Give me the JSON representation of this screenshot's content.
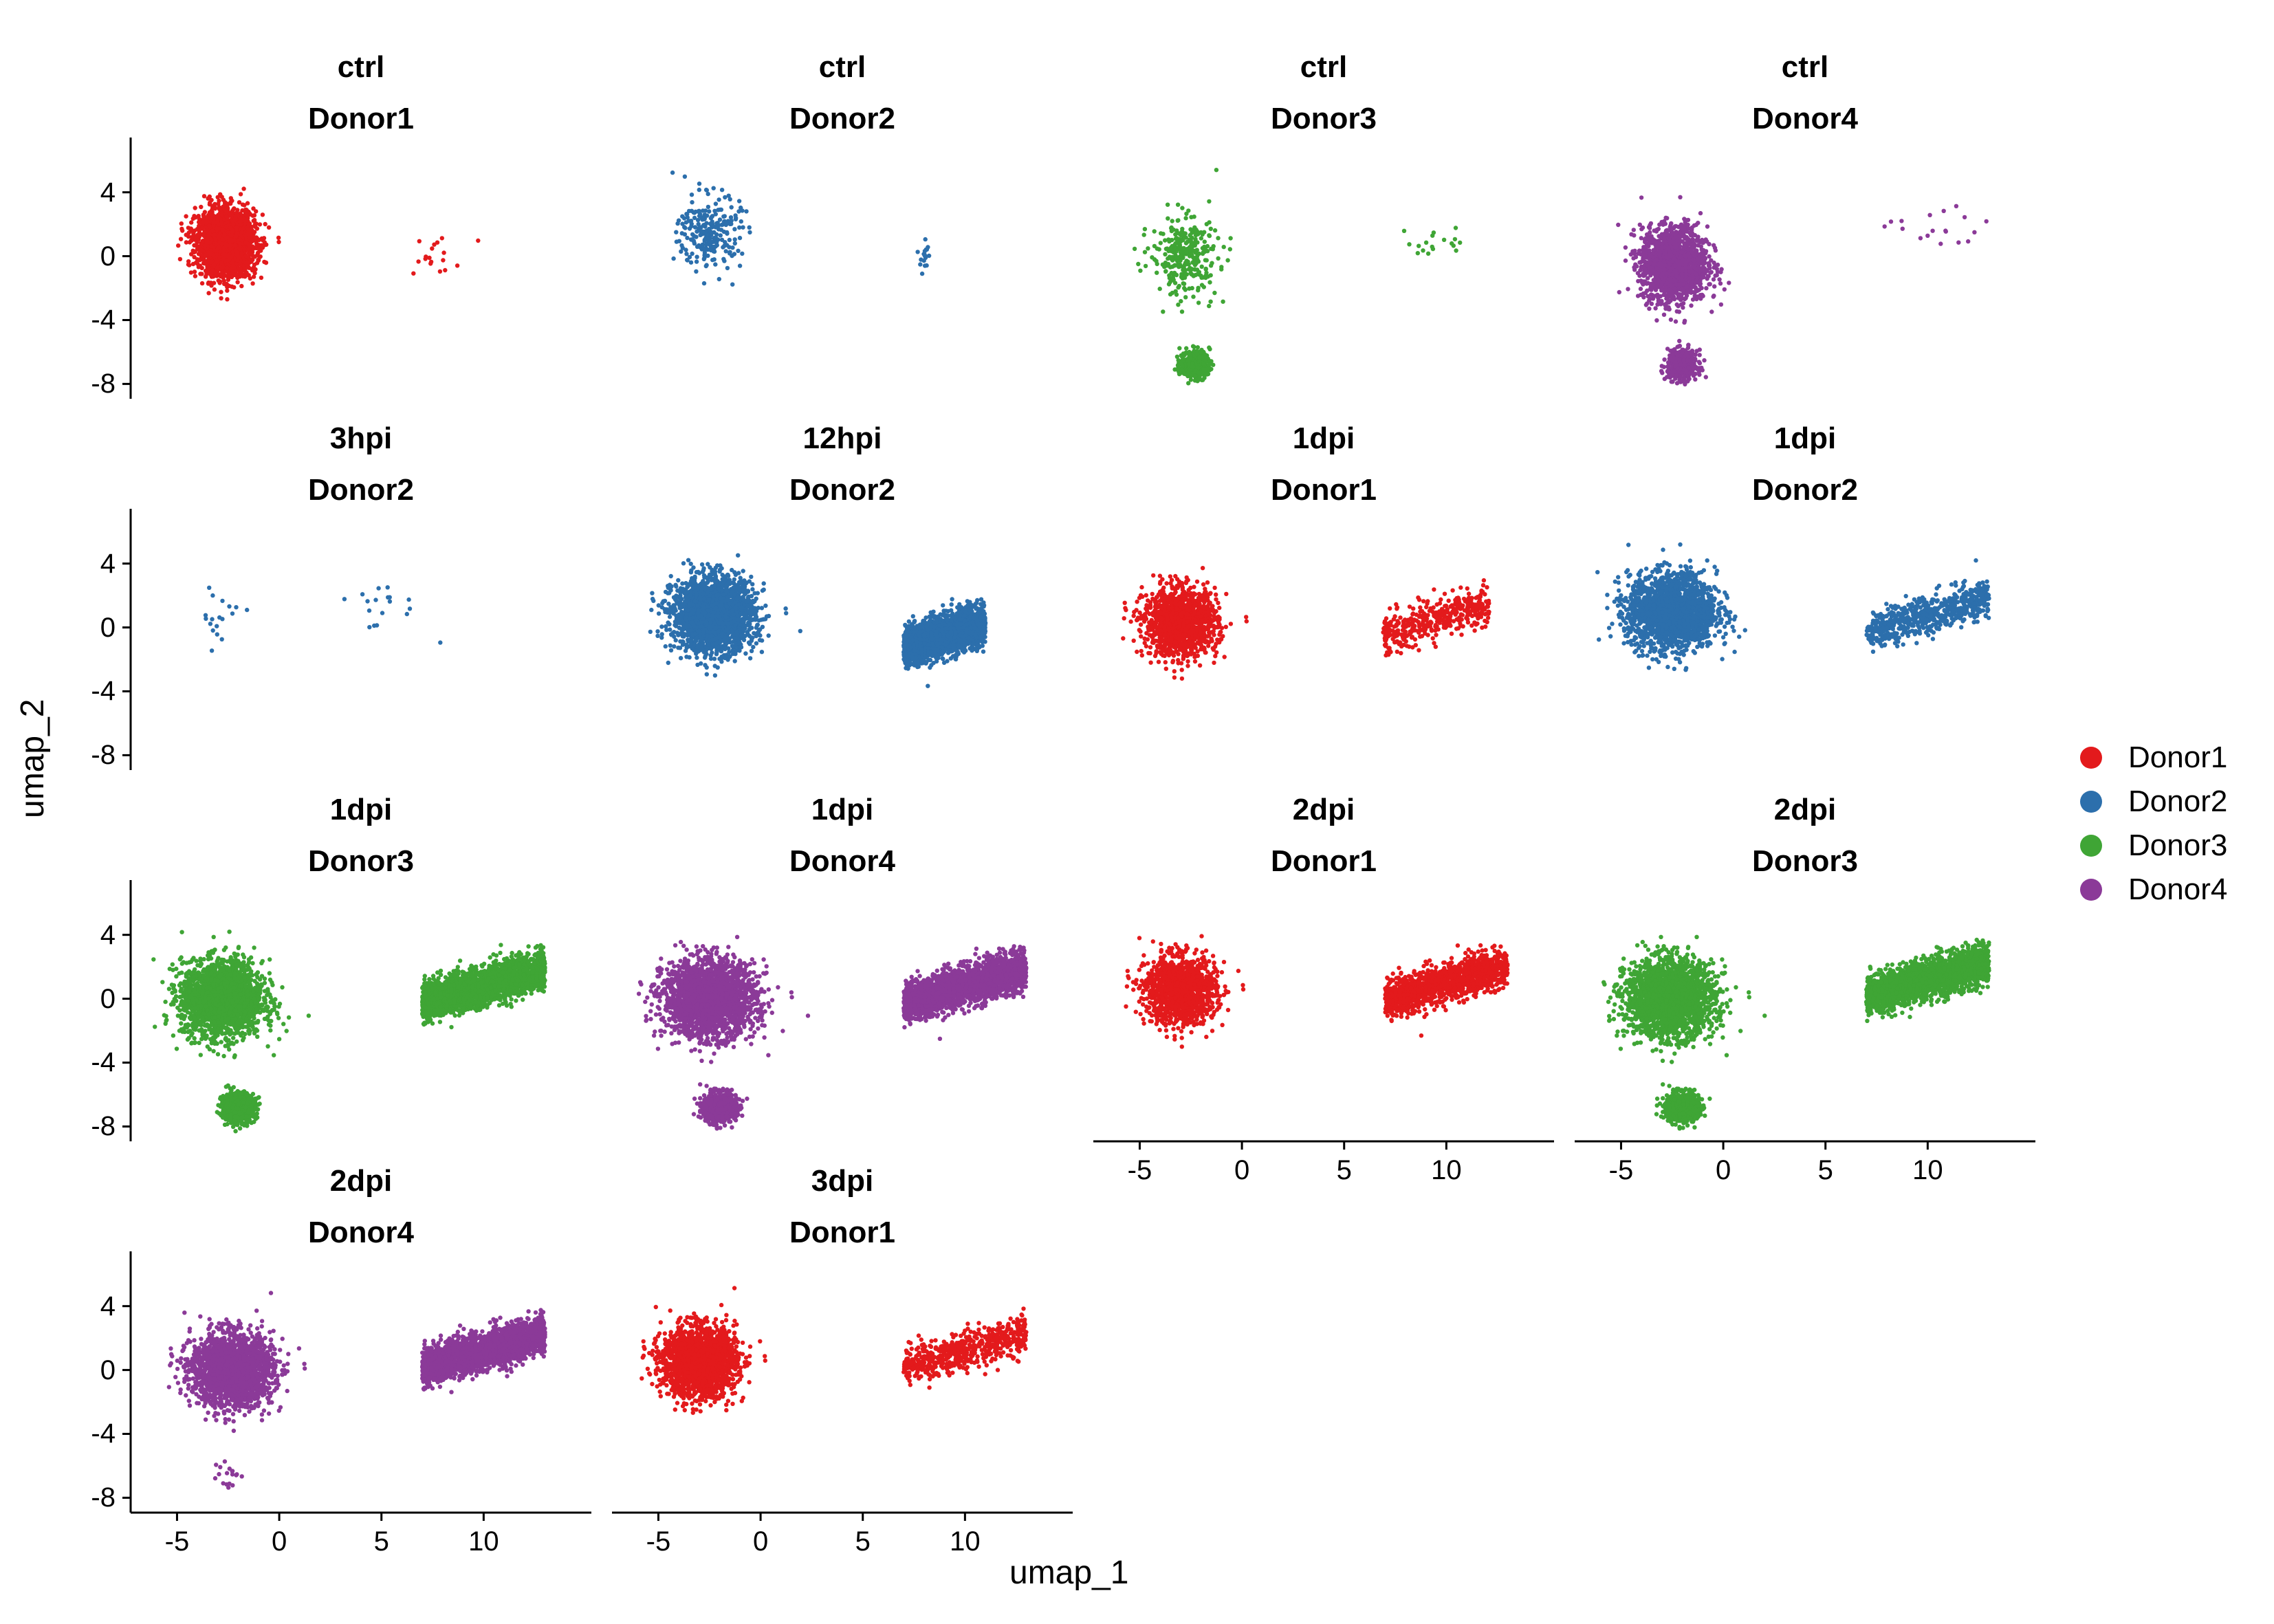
{
  "chart_data": {
    "type": "scatter",
    "facet_layout": "4 columns, facets by condition and donor",
    "xlabel": "umap_1",
    "ylabel": "umap_2",
    "xlim": [
      -7,
      15
    ],
    "ylim": [
      -8.5,
      7
    ],
    "x_ticks": [
      -5,
      0,
      5,
      10
    ],
    "x_tick_labels": [
      "-5",
      "0",
      "5",
      "10"
    ],
    "y_ticks": [
      4,
      0,
      -4,
      -8
    ],
    "y_tick_labels": [
      "4",
      "0",
      "-4",
      "-8"
    ],
    "grid": false,
    "legend": {
      "placement": "right",
      "entries": [
        {
          "name": "Donor1",
          "color": "#E31A1C"
        },
        {
          "name": "Donor2",
          "color": "#2C6FAC"
        },
        {
          "name": "Donor3",
          "color": "#3FA535"
        },
        {
          "name": "Donor4",
          "color": "#8B3A98"
        }
      ]
    },
    "panels": [
      {
        "condition": "ctrl",
        "donor": "Donor1",
        "color": "#E31A1C",
        "point_density": 0.9,
        "clusters": [
          {
            "label": "main",
            "center": [
              -2.6,
              0.8
            ],
            "spread": [
              1.6,
              2.3
            ],
            "density": "high"
          },
          {
            "label": "sparse-right",
            "center": [
              7.5,
              0.0
            ],
            "spread": [
              1.5,
              1.8
            ],
            "density": "sparse"
          }
        ]
      },
      {
        "condition": "ctrl",
        "donor": "Donor2",
        "color": "#2C6FAC",
        "point_density": 0.35,
        "clusters": [
          {
            "label": "main",
            "center": [
              -2.5,
              1.5
            ],
            "spread": [
              1.7,
              2.6
            ],
            "density": "medium"
          },
          {
            "label": "sparse-right",
            "center": [
              8.0,
              0.0
            ],
            "spread": [
              0.3,
              1.0
            ],
            "density": "sparse"
          }
        ]
      },
      {
        "condition": "ctrl",
        "donor": "Donor3",
        "color": "#3FA535",
        "point_density": 0.45,
        "clusters": [
          {
            "label": "main",
            "center": [
              -2.8,
              0.0
            ],
            "spread": [
              1.8,
              2.8
            ],
            "density": "medium"
          },
          {
            "label": "tail",
            "center": [
              -2.3,
              -6.8
            ],
            "spread": [
              0.8,
              1.0
            ],
            "density": "medium"
          },
          {
            "label": "sparse-right",
            "center": [
              9.5,
              1.0
            ],
            "spread": [
              1.5,
              1.5
            ],
            "density": "sparse"
          }
        ]
      },
      {
        "condition": "ctrl",
        "donor": "Donor4",
        "color": "#8B3A98",
        "point_density": 0.7,
        "clusters": [
          {
            "label": "main",
            "center": [
              -2.4,
              -0.5
            ],
            "spread": [
              1.8,
              2.6
            ],
            "density": "high"
          },
          {
            "label": "tail",
            "center": [
              -2.0,
              -6.8
            ],
            "spread": [
              0.8,
              1.0
            ],
            "density": "medium"
          },
          {
            "label": "sparse-right",
            "center": [
              10.5,
              1.5
            ],
            "spread": [
              2.5,
              1.8
            ],
            "density": "sparse"
          }
        ]
      },
      {
        "condition": "3hpi",
        "donor": "Donor2",
        "color": "#2C6FAC",
        "point_density": 0.15,
        "clusters": [
          {
            "label": "main",
            "center": [
              -3.0,
              0.5
            ],
            "spread": [
              1.4,
              2.6
            ],
            "density": "sparse"
          },
          {
            "label": "sparse-right",
            "center": [
              5.0,
              1.5
            ],
            "spread": [
              2.5,
              1.8
            ],
            "density": "sparse"
          }
        ]
      },
      {
        "condition": "12hpi",
        "donor": "Donor2",
        "color": "#2C6FAC",
        "point_density": 1.0,
        "clusters": [
          {
            "label": "main",
            "center": [
              -2.3,
              0.8
            ],
            "spread": [
              2.2,
              2.5
            ],
            "density": "high"
          },
          {
            "label": "right",
            "center": [
              9.0,
              -0.5
            ],
            "spread": [
              2.0,
              0.6
            ],
            "density": "high"
          }
        ]
      },
      {
        "condition": "1dpi",
        "donor": "Donor1",
        "color": "#E31A1C",
        "point_density": 0.6,
        "clusters": [
          {
            "label": "main",
            "center": [
              -3.0,
              0.3
            ],
            "spread": [
              2.0,
              2.3
            ],
            "density": "high"
          },
          {
            "label": "right",
            "center": [
              9.5,
              0.5
            ],
            "spread": [
              2.6,
              1.3
            ],
            "density": "medium"
          }
        ]
      },
      {
        "condition": "1dpi",
        "donor": "Donor2",
        "color": "#2C6FAC",
        "point_density": 0.9,
        "clusters": [
          {
            "label": "main",
            "center": [
              -2.5,
              1.0
            ],
            "spread": [
              2.4,
              2.6
            ],
            "density": "high"
          },
          {
            "label": "right",
            "center": [
              10.0,
              0.8
            ],
            "spread": [
              3.0,
              1.4
            ],
            "density": "medium"
          }
        ]
      },
      {
        "condition": "1dpi",
        "donor": "Donor3",
        "color": "#3FA535",
        "point_density": 1.0,
        "clusters": [
          {
            "label": "main",
            "center": [
              -2.8,
              0.0
            ],
            "spread": [
              2.2,
              2.6
            ],
            "density": "high"
          },
          {
            "label": "tail",
            "center": [
              -2.0,
              -6.8
            ],
            "spread": [
              0.9,
              1.0
            ],
            "density": "medium"
          },
          {
            "label": "right",
            "center": [
              10.0,
              0.8
            ],
            "spread": [
              3.0,
              1.4
            ],
            "density": "high"
          }
        ]
      },
      {
        "condition": "1dpi",
        "donor": "Donor4",
        "color": "#8B3A98",
        "point_density": 1.0,
        "clusters": [
          {
            "label": "main",
            "center": [
              -2.5,
              0.0
            ],
            "spread": [
              2.5,
              2.6
            ],
            "density": "high"
          },
          {
            "label": "tail",
            "center": [
              -2.0,
              -6.8
            ],
            "spread": [
              0.9,
              1.0
            ],
            "density": "medium"
          },
          {
            "label": "right",
            "center": [
              10.0,
              0.8
            ],
            "spread": [
              3.0,
              1.4
            ],
            "density": "high"
          }
        ]
      },
      {
        "condition": "2dpi",
        "donor": "Donor1",
        "color": "#E31A1C",
        "point_density": 0.6,
        "clusters": [
          {
            "label": "main",
            "center": [
              -3.0,
              0.5
            ],
            "spread": [
              1.9,
              2.3
            ],
            "density": "high"
          },
          {
            "label": "right",
            "center": [
              10.0,
              1.0
            ],
            "spread": [
              3.0,
              1.4
            ],
            "density": "high"
          }
        ]
      },
      {
        "condition": "2dpi",
        "donor": "Donor3",
        "color": "#3FA535",
        "point_density": 1.0,
        "clusters": [
          {
            "label": "main",
            "center": [
              -2.6,
              0.0
            ],
            "spread": [
              2.4,
              2.6
            ],
            "density": "high"
          },
          {
            "label": "tail",
            "center": [
              -2.0,
              -6.8
            ],
            "spread": [
              0.9,
              1.0
            ],
            "density": "medium"
          },
          {
            "label": "right",
            "center": [
              10.0,
              1.2
            ],
            "spread": [
              3.0,
              1.4
            ],
            "density": "high"
          }
        ]
      },
      {
        "condition": "2dpi",
        "donor": "Donor4",
        "color": "#8B3A98",
        "point_density": 0.9,
        "clusters": [
          {
            "label": "main",
            "center": [
              -2.3,
              0.0
            ],
            "spread": [
              2.2,
              2.5
            ],
            "density": "high"
          },
          {
            "label": "tail",
            "center": [
              -2.5,
              -6.5
            ],
            "spread": [
              0.8,
              1.2
            ],
            "density": "sparse"
          },
          {
            "label": "right",
            "center": [
              10.0,
              1.2
            ],
            "spread": [
              3.0,
              1.4
            ],
            "density": "high"
          }
        ]
      },
      {
        "condition": "3dpi",
        "donor": "Donor1",
        "color": "#E31A1C",
        "point_density": 0.85,
        "clusters": [
          {
            "label": "main",
            "center": [
              -3.0,
              0.5
            ],
            "spread": [
              2.0,
              2.4
            ],
            "density": "high"
          },
          {
            "label": "right",
            "center": [
              10.0,
              1.2
            ],
            "spread": [
              3.0,
              1.4
            ],
            "density": "medium"
          }
        ]
      }
    ]
  }
}
